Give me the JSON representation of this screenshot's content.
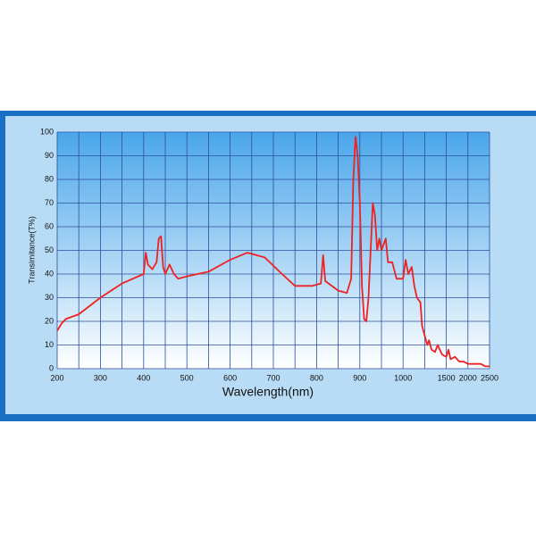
{
  "chart_data": {
    "type": "line",
    "x_label": "Wavelength(nm)",
    "y_label": "Transimitance(T%)",
    "x": [
      200,
      210,
      220,
      250,
      300,
      350,
      400,
      405,
      410,
      420,
      430,
      435,
      440,
      445,
      450,
      460,
      470,
      480,
      500,
      550,
      600,
      640,
      680,
      720,
      750,
      790,
      810,
      815,
      820,
      850,
      870,
      880,
      885,
      890,
      895,
      900,
      905,
      910,
      915,
      920,
      930,
      935,
      940,
      945,
      950,
      960,
      965,
      975,
      985,
      1000,
      1030,
      1060,
      1100,
      1130,
      1160,
      1200,
      1220,
      1250,
      1280,
      1300,
      1330,
      1370,
      1400,
      1450,
      1500,
      1550,
      1600,
      1700,
      1800,
      1900,
      2000,
      2200,
      2300,
      2400,
      2500
    ],
    "series": [
      {
        "name": "Transmittance",
        "color": "#ee2222",
        "values": [
          16,
          19,
          21,
          23,
          30,
          36,
          40,
          49,
          44,
          42,
          45,
          55,
          56,
          43,
          40,
          44,
          40,
          38,
          39,
          41,
          46,
          49,
          47,
          40,
          35,
          35,
          36,
          48,
          37,
          33,
          32,
          38,
          80,
          98,
          90,
          70,
          35,
          21,
          20,
          30,
          70,
          65,
          50,
          55,
          50,
          55,
          45,
          45,
          38,
          38,
          46,
          40,
          43,
          35,
          30,
          28,
          18,
          14,
          10,
          12,
          8,
          7,
          10,
          6,
          5,
          8,
          4,
          5,
          3,
          3,
          2,
          2,
          2,
          1,
          1
        ]
      }
    ],
    "xlim": [
      200,
      2500
    ],
    "xticks": [
      200,
      300,
      400,
      500,
      600,
      700,
      800,
      900,
      1000,
      1500,
      2000,
      2500
    ],
    "ylim": [
      0,
      100
    ],
    "yticks": [
      0,
      10,
      20,
      30,
      40,
      50,
      60,
      70,
      80,
      90,
      100
    ],
    "grid": true
  }
}
